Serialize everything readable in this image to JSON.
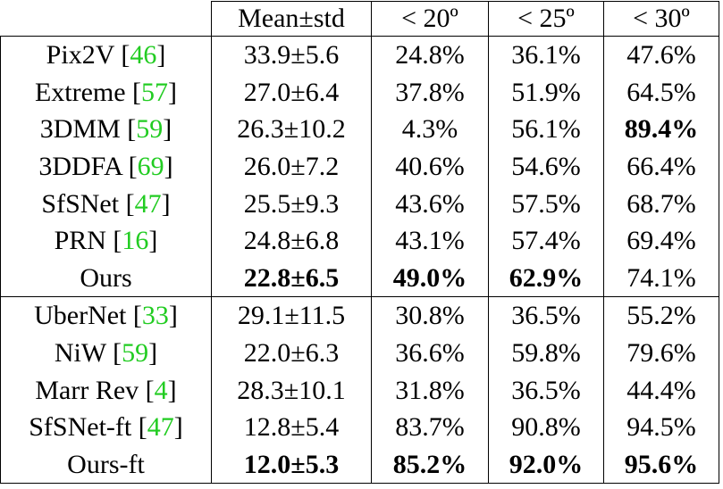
{
  "table": {
    "header": [
      "Mean±std",
      "< 20º",
      "< 25º",
      "< 30º"
    ],
    "sections": [
      [
        {
          "name": "Pix2V [",
          "ref": "46",
          "end": "]",
          "cells": [
            "33.9±5.6",
            "24.8%",
            "36.1%",
            "47.6%"
          ],
          "bold": []
        },
        {
          "name": "Extreme [",
          "ref": "57",
          "end": "]",
          "cells": [
            "27.0±6.4",
            "37.8%",
            "51.9%",
            "64.5%"
          ],
          "bold": []
        },
        {
          "name": "3DMM [",
          "ref": "59",
          "end": "]",
          "cells": [
            "26.3±10.2",
            "4.3%",
            "56.1%",
            "89.4%"
          ],
          "bold": [
            3
          ]
        },
        {
          "name": "3DDFA [",
          "ref": "69",
          "end": "]",
          "cells": [
            "26.0±7.2",
            "40.6%",
            "54.6%",
            "66.4%"
          ],
          "bold": []
        },
        {
          "name": "SfSNet [",
          "ref": "47",
          "end": "]",
          "cells": [
            "25.5±9.3",
            "43.6%",
            "57.5%",
            "68.7%"
          ],
          "bold": []
        },
        {
          "name": "PRN [",
          "ref": "16",
          "end": "]",
          "cells": [
            "24.8±6.8",
            "43.1%",
            "57.4%",
            "69.4%"
          ],
          "bold": []
        },
        {
          "name": "Ours",
          "cells": [
            "22.8±6.5",
            "49.0%",
            "62.9%",
            "74.1%"
          ],
          "bold": [
            0,
            1,
            2
          ]
        }
      ],
      [
        {
          "name": "UberNet [",
          "ref": "33",
          "end": "]",
          "cells": [
            "29.1±11.5",
            "30.8%",
            "36.5%",
            "55.2%"
          ],
          "bold": []
        },
        {
          "name": "NiW [",
          "ref": "59",
          "end": "]",
          "cells": [
            "22.0±6.3",
            "36.6%",
            "59.8%",
            "79.6%"
          ],
          "bold": []
        },
        {
          "name": "Marr Rev [",
          "ref": "4",
          "end": "]",
          "cells": [
            "28.3±10.1",
            "31.8%",
            "36.5%",
            "44.4%"
          ],
          "bold": []
        },
        {
          "name": "SfSNet-ft [",
          "ref": "47",
          "end": "]",
          "cells": [
            "12.8±5.4",
            "83.7%",
            "90.8%",
            "94.5%"
          ],
          "bold": []
        },
        {
          "name": "Ours-ft",
          "cells": [
            "12.0±5.3",
            "85.2%",
            "92.0%",
            "95.6%"
          ],
          "bold": [
            0,
            1,
            2,
            3
          ]
        }
      ]
    ]
  }
}
